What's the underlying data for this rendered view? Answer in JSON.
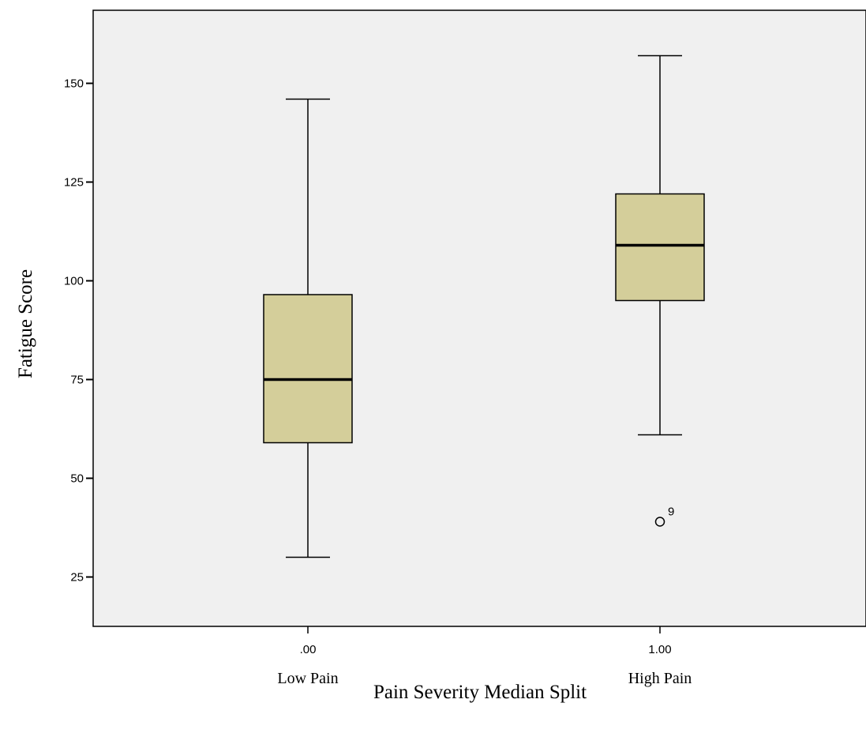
{
  "colors": {
    "plot_background": "#f0f0f0",
    "box_fill": "#d4ce9a",
    "stroke": "#000000"
  },
  "chart_data": {
    "type": "boxplot",
    "title": "",
    "xlabel": "Pain Severity Median Split",
    "ylabel": "Fatigue Score",
    "ylim": [
      12.5,
      168.5
    ],
    "yticks": [
      25,
      50,
      75,
      100,
      125,
      150
    ],
    "ytick_labels": [
      "25",
      "50",
      "75",
      "100",
      "125",
      "150"
    ],
    "grid": false,
    "legend": false,
    "categories": [
      {
        "tick_label": ".00",
        "group_label": "Low Pain",
        "whisker_low": 30,
        "q1": 59,
        "median": 75,
        "q3": 96.5,
        "whisker_high": 146,
        "outliers": []
      },
      {
        "tick_label": "1.00",
        "group_label": "High Pain",
        "whisker_low": 61,
        "q1": 95,
        "median": 109,
        "q3": 122,
        "whisker_high": 157,
        "outliers": [
          {
            "value": 39,
            "label": "9"
          }
        ]
      }
    ]
  }
}
